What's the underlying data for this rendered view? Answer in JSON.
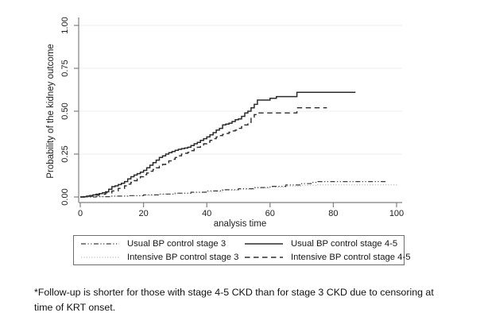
{
  "chart_data": {
    "type": "line",
    "subtype": "kaplan-meier-step",
    "title": "",
    "xlabel": "analysis time",
    "ylabel": "Probability of the kidney outcome",
    "xlim": [
      0,
      100
    ],
    "ylim": [
      0,
      1
    ],
    "x_ticks": [
      {
        "v": 0,
        "label": "0"
      },
      {
        "v": 20,
        "label": "20"
      },
      {
        "v": 40,
        "label": "40"
      },
      {
        "v": 60,
        "label": "60"
      },
      {
        "v": 80,
        "label": "80"
      },
      {
        "v": 100,
        "label": "100"
      }
    ],
    "y_ticks": [
      {
        "v": 0,
        "label": "0.00"
      },
      {
        "v": 0.25,
        "label": "0.25"
      },
      {
        "v": 0.5,
        "label": "0.50"
      },
      {
        "v": 0.75,
        "label": "0.75"
      },
      {
        "v": 1,
        "label": "1.00"
      }
    ],
    "grid": "horizontal gridlines at labeled y ticks",
    "legend_position": "bottom-center, boxed, 2 columns",
    "colors": {
      "axis": "#808080",
      "gridline": "#ececec",
      "text": "#1c1c1c"
    },
    "series": [
      {
        "label": "Usual BP control stage 3",
        "style": {
          "color": "#3c3c3c",
          "width": 1.2,
          "dash": "6,2.5,1.2,2.5,1.2,2.5"
        },
        "points": [
          [
            0,
            0
          ],
          [
            5,
            0.002
          ],
          [
            10,
            0.005
          ],
          [
            15,
            0.008
          ],
          [
            20,
            0.012
          ],
          [
            25,
            0.017
          ],
          [
            30,
            0.022
          ],
          [
            35,
            0.028
          ],
          [
            40,
            0.035
          ],
          [
            45,
            0.042
          ],
          [
            50,
            0.048
          ],
          [
            55,
            0.055
          ],
          [
            60,
            0.062
          ],
          [
            65,
            0.07
          ],
          [
            70,
            0.078
          ],
          [
            73,
            0.085
          ],
          [
            75,
            0.09
          ],
          [
            97,
            0.09
          ]
        ]
      },
      {
        "label": "Usual BP control stage 4-5",
        "style": {
          "color": "#2b2b2b",
          "width": 1.5,
          "dash": ""
        },
        "points": [
          [
            0,
            0
          ],
          [
            1,
            0.002
          ],
          [
            2,
            0.005
          ],
          [
            3,
            0.008
          ],
          [
            4,
            0.012
          ],
          [
            5,
            0.016
          ],
          [
            6,
            0.02
          ],
          [
            7,
            0.025
          ],
          [
            8,
            0.03
          ],
          [
            9,
            0.045
          ],
          [
            10,
            0.06
          ],
          [
            11,
            0.065
          ],
          [
            12,
            0.072
          ],
          [
            13,
            0.08
          ],
          [
            14,
            0.09
          ],
          [
            15,
            0.105
          ],
          [
            16,
            0.118
          ],
          [
            17,
            0.128
          ],
          [
            18,
            0.136
          ],
          [
            19,
            0.145
          ],
          [
            20,
            0.155
          ],
          [
            21,
            0.17
          ],
          [
            22,
            0.185
          ],
          [
            23,
            0.2
          ],
          [
            24,
            0.215
          ],
          [
            25,
            0.23
          ],
          [
            26,
            0.24
          ],
          [
            27,
            0.25
          ],
          [
            28,
            0.258
          ],
          [
            29,
            0.265
          ],
          [
            30,
            0.272
          ],
          [
            31,
            0.278
          ],
          [
            32,
            0.282
          ],
          [
            33,
            0.285
          ],
          [
            34,
            0.29
          ],
          [
            35,
            0.3
          ],
          [
            36,
            0.31
          ],
          [
            37,
            0.318
          ],
          [
            38,
            0.33
          ],
          [
            39,
            0.34
          ],
          [
            40,
            0.35
          ],
          [
            41,
            0.362
          ],
          [
            42,
            0.375
          ],
          [
            43,
            0.39
          ],
          [
            44,
            0.4
          ],
          [
            45,
            0.42
          ],
          [
            46,
            0.425
          ],
          [
            47,
            0.43
          ],
          [
            48,
            0.44
          ],
          [
            49,
            0.45
          ],
          [
            50,
            0.455
          ],
          [
            51,
            0.47
          ],
          [
            52,
            0.49
          ],
          [
            53,
            0.5
          ],
          [
            54,
            0.52
          ],
          [
            55,
            0.54
          ],
          [
            56,
            0.565
          ],
          [
            59,
            0.565
          ],
          [
            60,
            0.575
          ],
          [
            62,
            0.585
          ],
          [
            68,
            0.585
          ],
          [
            68.5,
            0.61
          ],
          [
            87,
            0.61
          ]
        ]
      },
      {
        "label": "Intensive BP control stage 3",
        "style": {
          "color": "#b4b4b4",
          "width": 1,
          "dash": "1.3,2"
        },
        "points": [
          [
            0,
            0
          ],
          [
            5,
            0.002
          ],
          [
            10,
            0.004
          ],
          [
            15,
            0.007
          ],
          [
            20,
            0.01
          ],
          [
            25,
            0.015
          ],
          [
            30,
            0.02
          ],
          [
            35,
            0.026
          ],
          [
            40,
            0.032
          ],
          [
            45,
            0.04
          ],
          [
            50,
            0.046
          ],
          [
            55,
            0.052
          ],
          [
            60,
            0.058
          ],
          [
            65,
            0.064
          ],
          [
            70,
            0.068
          ],
          [
            75,
            0.071
          ],
          [
            100,
            0.072
          ]
        ]
      },
      {
        "label": "Intensive BP control stage 4-5",
        "style": {
          "color": "#2b2b2b",
          "width": 1.4,
          "dash": "6.5,4.5"
        },
        "points": [
          [
            0,
            0
          ],
          [
            2,
            0.004
          ],
          [
            4,
            0.01
          ],
          [
            6,
            0.016
          ],
          [
            8,
            0.024
          ],
          [
            10,
            0.035
          ],
          [
            12,
            0.05
          ],
          [
            14,
            0.065
          ],
          [
            15,
            0.075
          ],
          [
            16,
            0.085
          ],
          [
            17,
            0.095
          ],
          [
            18,
            0.105
          ],
          [
            19,
            0.118
          ],
          [
            20,
            0.13
          ],
          [
            21,
            0.14
          ],
          [
            22,
            0.15
          ],
          [
            23,
            0.16
          ],
          [
            24,
            0.17
          ],
          [
            25,
            0.18
          ],
          [
            26,
            0.19
          ],
          [
            27,
            0.2
          ],
          [
            28,
            0.21
          ],
          [
            29,
            0.22
          ],
          [
            30,
            0.23
          ],
          [
            31,
            0.24
          ],
          [
            32,
            0.25
          ],
          [
            33,
            0.255
          ],
          [
            34,
            0.26
          ],
          [
            35,
            0.27
          ],
          [
            36,
            0.28
          ],
          [
            37,
            0.29
          ],
          [
            38,
            0.3
          ],
          [
            39,
            0.31
          ],
          [
            40,
            0.32
          ],
          [
            41,
            0.33
          ],
          [
            42,
            0.34
          ],
          [
            43,
            0.35
          ],
          [
            44,
            0.358
          ],
          [
            45,
            0.365
          ],
          [
            46,
            0.37
          ],
          [
            47,
            0.378
          ],
          [
            48,
            0.385
          ],
          [
            49,
            0.39
          ],
          [
            50,
            0.4
          ],
          [
            51,
            0.41
          ],
          [
            52,
            0.42
          ],
          [
            53,
            0.435
          ],
          [
            54,
            0.465
          ],
          [
            55,
            0.48
          ],
          [
            56,
            0.49
          ],
          [
            68,
            0.49
          ],
          [
            68.5,
            0.52
          ],
          [
            78,
            0.52
          ]
        ]
      }
    ]
  },
  "footnote": "*Follow-up is shorter for those with stage 4-5 CKD than for stage 3 CKD due to censoring at\ntime of KRT onset."
}
